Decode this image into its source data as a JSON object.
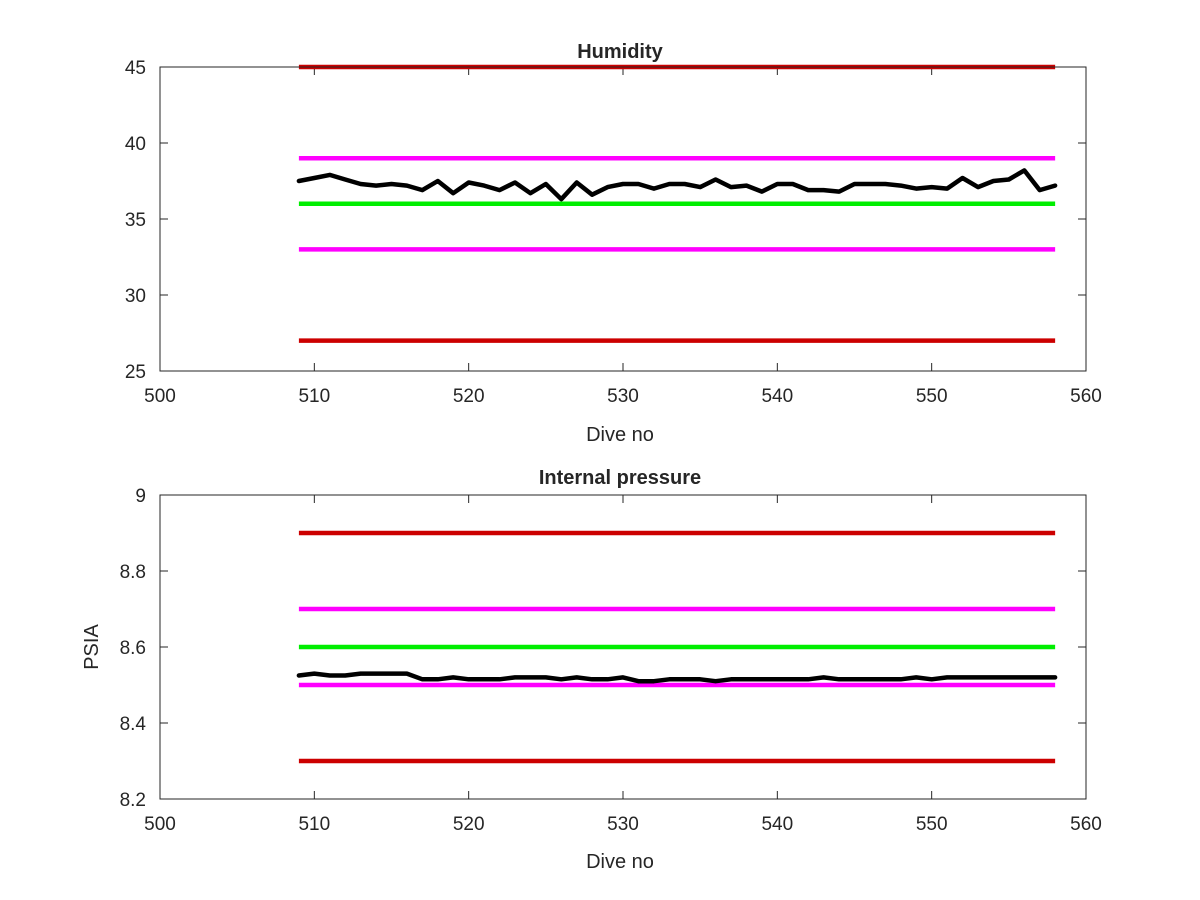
{
  "chart_data": [
    {
      "type": "line",
      "title": "Humidity",
      "xlabel": "Dive no",
      "ylabel": "",
      "xlim": [
        500,
        560
      ],
      "ylim": [
        25,
        45
      ],
      "x_ticks": [
        "500",
        "510",
        "520",
        "530",
        "540",
        "550",
        "560"
      ],
      "y_ticks": [
        "25",
        "30",
        "35",
        "40",
        "45"
      ],
      "grid": false,
      "legend": "none",
      "thresholds": [
        {
          "value": 45,
          "x": [
            509,
            558
          ],
          "color": "#cc0000"
        },
        {
          "value": 39,
          "x": [
            509,
            558
          ],
          "color": "#ff00ff"
        },
        {
          "value": 36,
          "x": [
            509,
            558
          ],
          "color": "#00ee00"
        },
        {
          "value": 33,
          "x": [
            509,
            558
          ],
          "color": "#ff00ff"
        },
        {
          "value": 27,
          "x": [
            509,
            558
          ],
          "color": "#cc0000"
        }
      ],
      "series": [
        {
          "color": "#000000",
          "x": [
            509,
            510,
            511,
            512,
            513,
            514,
            515,
            516,
            517,
            518,
            519,
            520,
            521,
            522,
            523,
            524,
            525,
            526,
            527,
            528,
            529,
            530,
            531,
            532,
            533,
            534,
            535,
            536,
            537,
            538,
            539,
            540,
            541,
            542,
            543,
            544,
            545,
            546,
            547,
            548,
            549,
            550,
            551,
            552,
            553,
            554,
            555,
            556,
            557,
            558
          ],
          "y": [
            37.5,
            37.7,
            37.9,
            37.6,
            37.3,
            37.2,
            37.3,
            37.2,
            36.9,
            37.5,
            36.7,
            37.4,
            37.2,
            36.9,
            37.4,
            36.7,
            37.3,
            36.3,
            37.4,
            36.6,
            37.1,
            37.3,
            37.3,
            37.0,
            37.3,
            37.3,
            37.1,
            37.6,
            37.1,
            37.2,
            36.8,
            37.3,
            37.3,
            36.9,
            36.9,
            36.8,
            37.3,
            37.3,
            37.3,
            37.2,
            37.0,
            37.1,
            37.0,
            37.7,
            37.1,
            37.5,
            37.6,
            38.2,
            36.9,
            37.2
          ]
        }
      ]
    },
    {
      "type": "line",
      "title": "Internal pressure",
      "xlabel": "Dive no",
      "ylabel": "PSIA",
      "xlim": [
        500,
        560
      ],
      "ylim": [
        8.2,
        9.0
      ],
      "x_ticks": [
        "500",
        "510",
        "520",
        "530",
        "540",
        "550",
        "560"
      ],
      "y_ticks": [
        "8.2",
        "8.4",
        "8.6",
        "8.8",
        "9"
      ],
      "grid": false,
      "legend": "none",
      "thresholds": [
        {
          "value": 8.9,
          "x": [
            509,
            558
          ],
          "color": "#cc0000"
        },
        {
          "value": 8.7,
          "x": [
            509,
            558
          ],
          "color": "#ff00ff"
        },
        {
          "value": 8.6,
          "x": [
            509,
            558
          ],
          "color": "#00ee00"
        },
        {
          "value": 8.5,
          "x": [
            509,
            558
          ],
          "color": "#ff00ff"
        },
        {
          "value": 8.3,
          "x": [
            509,
            558
          ],
          "color": "#cc0000"
        }
      ],
      "series": [
        {
          "color": "#000000",
          "x": [
            509,
            510,
            511,
            512,
            513,
            514,
            515,
            516,
            517,
            518,
            519,
            520,
            521,
            522,
            523,
            524,
            525,
            526,
            527,
            528,
            529,
            530,
            531,
            532,
            533,
            534,
            535,
            536,
            537,
            538,
            539,
            540,
            541,
            542,
            543,
            544,
            545,
            546,
            547,
            548,
            549,
            550,
            551,
            552,
            553,
            554,
            555,
            556,
            557,
            558
          ],
          "y": [
            8.525,
            8.53,
            8.525,
            8.525,
            8.53,
            8.53,
            8.53,
            8.53,
            8.515,
            8.515,
            8.52,
            8.515,
            8.515,
            8.515,
            8.52,
            8.52,
            8.52,
            8.515,
            8.52,
            8.515,
            8.515,
            8.52,
            8.51,
            8.51,
            8.515,
            8.515,
            8.515,
            8.51,
            8.515,
            8.515,
            8.515,
            8.515,
            8.515,
            8.515,
            8.52,
            8.515,
            8.515,
            8.515,
            8.515,
            8.515,
            8.52,
            8.515,
            8.52,
            8.52,
            8.52,
            8.52,
            8.52,
            8.52,
            8.52,
            8.52
          ]
        }
      ]
    }
  ]
}
